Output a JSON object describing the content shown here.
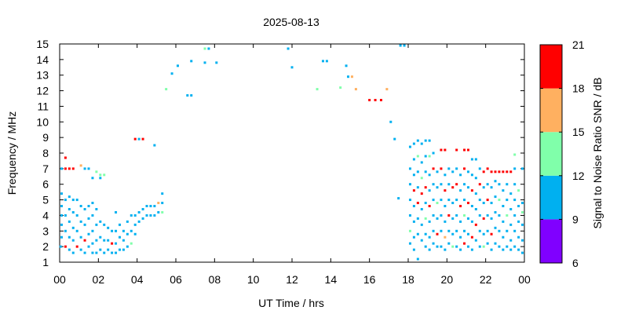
{
  "chart_data": {
    "type": "scatter",
    "title": "2025-08-13",
    "xlabel": "UT Time / hrs",
    "ylabel": "Frequency / MHz",
    "xlim": [
      0,
      24
    ],
    "ylim": [
      1,
      15
    ],
    "x_ticks": [
      "00",
      "02",
      "04",
      "06",
      "08",
      "10",
      "12",
      "14",
      "16",
      "18",
      "20",
      "22",
      "00"
    ],
    "y_ticks": [
      "1",
      "2",
      "3",
      "4",
      "5",
      "6",
      "7",
      "8",
      "9",
      "10",
      "11",
      "12",
      "13",
      "14",
      "15"
    ],
    "grid": false,
    "colorbar": {
      "label": "Signal to Noise Ratio SNR / dB",
      "ticks": [
        "6",
        "9",
        "12",
        "15",
        "18",
        "21"
      ],
      "bands": [
        {
          "min": 6,
          "max": 9,
          "color": "#8000ff"
        },
        {
          "min": 9,
          "max": 12,
          "color": "#00b0f0"
        },
        {
          "min": 12,
          "max": 15,
          "color": "#80ffaa"
        },
        {
          "min": 15,
          "max": 18,
          "color": "#ffb060"
        },
        {
          "min": 18,
          "max": 21,
          "color": "#ff0000"
        }
      ]
    },
    "points": [
      [
        0.05,
        2.0,
        10
      ],
      [
        0.1,
        2.6,
        10
      ],
      [
        0.1,
        3.4,
        10
      ],
      [
        0.1,
        4.0,
        10
      ],
      [
        0.1,
        4.6,
        10
      ],
      [
        0.1,
        5.4,
        10
      ],
      [
        0.1,
        7.0,
        10
      ],
      [
        0.3,
        7.7,
        19
      ],
      [
        0.3,
        7.0,
        19
      ],
      [
        0.3,
        5.0,
        10
      ],
      [
        0.3,
        4.0,
        10
      ],
      [
        0.3,
        3.0,
        10
      ],
      [
        0.3,
        2.0,
        19
      ],
      [
        0.5,
        7.0,
        19
      ],
      [
        0.5,
        5.2,
        10
      ],
      [
        0.5,
        4.4,
        10
      ],
      [
        0.5,
        3.6,
        10
      ],
      [
        0.5,
        2.6,
        10
      ],
      [
        0.5,
        1.8,
        10
      ],
      [
        0.7,
        7.0,
        19
      ],
      [
        0.7,
        5.0,
        10
      ],
      [
        0.7,
        4.2,
        10
      ],
      [
        0.7,
        3.2,
        10
      ],
      [
        0.7,
        2.4,
        10
      ],
      [
        0.7,
        1.6,
        10
      ],
      [
        0.9,
        5.0,
        10
      ],
      [
        0.9,
        4.0,
        10
      ],
      [
        0.9,
        3.0,
        10
      ],
      [
        0.9,
        2.0,
        19
      ],
      [
        1.1,
        7.2,
        16
      ],
      [
        1.1,
        4.6,
        10
      ],
      [
        1.1,
        3.6,
        10
      ],
      [
        1.1,
        2.6,
        10
      ],
      [
        1.1,
        1.8,
        10
      ],
      [
        1.3,
        7.0,
        10
      ],
      [
        1.3,
        4.4,
        10
      ],
      [
        1.3,
        3.4,
        10
      ],
      [
        1.3,
        2.4,
        19
      ],
      [
        1.3,
        1.6,
        10
      ],
      [
        1.5,
        7.0,
        10
      ],
      [
        1.5,
        4.6,
        10
      ],
      [
        1.5,
        3.8,
        10
      ],
      [
        1.5,
        2.8,
        10
      ],
      [
        1.5,
        2.0,
        10
      ],
      [
        1.7,
        6.4,
        10
      ],
      [
        1.7,
        4.8,
        10
      ],
      [
        1.7,
        4.0,
        10
      ],
      [
        1.7,
        3.0,
        10
      ],
      [
        1.7,
        2.2,
        10
      ],
      [
        1.7,
        1.6,
        10
      ],
      [
        1.9,
        6.8,
        13
      ],
      [
        1.9,
        4.4,
        10
      ],
      [
        1.9,
        3.4,
        10
      ],
      [
        1.9,
        2.4,
        10
      ],
      [
        1.9,
        1.6,
        10
      ],
      [
        2.1,
        6.6,
        13
      ],
      [
        2.1,
        6.4,
        10
      ],
      [
        2.1,
        3.6,
        10
      ],
      [
        2.1,
        2.6,
        10
      ],
      [
        2.1,
        1.8,
        10
      ],
      [
        2.3,
        6.6,
        13
      ],
      [
        2.3,
        3.4,
        10
      ],
      [
        2.3,
        2.4,
        10
      ],
      [
        2.3,
        1.6,
        10
      ],
      [
        2.5,
        3.2,
        10
      ],
      [
        2.5,
        2.4,
        10
      ],
      [
        2.5,
        1.8,
        10
      ],
      [
        2.7,
        3.0,
        10
      ],
      [
        2.7,
        2.2,
        19
      ],
      [
        2.7,
        1.6,
        10
      ],
      [
        2.9,
        4.2,
        10
      ],
      [
        2.9,
        3.0,
        10
      ],
      [
        2.9,
        2.2,
        10
      ],
      [
        2.9,
        1.6,
        10
      ],
      [
        3.1,
        3.4,
        10
      ],
      [
        3.1,
        2.6,
        10
      ],
      [
        3.1,
        1.8,
        10
      ],
      [
        3.3,
        3.0,
        10
      ],
      [
        3.3,
        2.4,
        10
      ],
      [
        3.3,
        1.8,
        10
      ],
      [
        3.5,
        3.6,
        10
      ],
      [
        3.5,
        2.8,
        10
      ],
      [
        3.5,
        2.0,
        10
      ],
      [
        3.7,
        4.0,
        10
      ],
      [
        3.7,
        3.0,
        10
      ],
      [
        3.7,
        2.2,
        13
      ],
      [
        3.9,
        8.9,
        19
      ],
      [
        3.9,
        4.0,
        10
      ],
      [
        3.9,
        3.4,
        10
      ],
      [
        3.9,
        2.8,
        10
      ],
      [
        4.1,
        8.9,
        10
      ],
      [
        4.1,
        4.2,
        10
      ],
      [
        4.1,
        3.6,
        10
      ],
      [
        4.3,
        8.9,
        19
      ],
      [
        4.3,
        4.4,
        10
      ],
      [
        4.3,
        3.8,
        10
      ],
      [
        4.5,
        4.6,
        10
      ],
      [
        4.5,
        4.0,
        10
      ],
      [
        4.7,
        4.6,
        10
      ],
      [
        4.7,
        4.0,
        10
      ],
      [
        4.9,
        8.5,
        10
      ],
      [
        4.9,
        4.6,
        10
      ],
      [
        4.9,
        4.0,
        10
      ],
      [
        5.1,
        4.8,
        16
      ],
      [
        5.1,
        4.2,
        10
      ],
      [
        5.3,
        5.4,
        10
      ],
      [
        5.3,
        4.8,
        10
      ],
      [
        5.3,
        4.2,
        13
      ],
      [
        5.5,
        12.1,
        13
      ],
      [
        5.8,
        13.1,
        10
      ],
      [
        6.1,
        13.6,
        10
      ],
      [
        6.6,
        11.7,
        10
      ],
      [
        6.8,
        11.7,
        10
      ],
      [
        6.8,
        13.9,
        10
      ],
      [
        7.5,
        14.7,
        13
      ],
      [
        7.5,
        13.8,
        10
      ],
      [
        7.7,
        14.7,
        10
      ],
      [
        8.1,
        13.8,
        10
      ],
      [
        11.8,
        14.7,
        10
      ],
      [
        12.0,
        13.5,
        10
      ],
      [
        13.3,
        12.1,
        13
      ],
      [
        13.6,
        13.9,
        10
      ],
      [
        13.8,
        13.9,
        10
      ],
      [
        14.5,
        12.2,
        13
      ],
      [
        14.8,
        13.6,
        10
      ],
      [
        14.9,
        12.9,
        10
      ],
      [
        15.1,
        12.9,
        16
      ],
      [
        15.3,
        12.1,
        16
      ],
      [
        16.0,
        11.4,
        19
      ],
      [
        16.3,
        11.4,
        19
      ],
      [
        16.6,
        11.4,
        19
      ],
      [
        16.9,
        12.1,
        16
      ],
      [
        17.1,
        10.0,
        10
      ],
      [
        17.3,
        8.9,
        10
      ],
      [
        17.5,
        5.1,
        10
      ],
      [
        17.6,
        14.9,
        10
      ],
      [
        17.8,
        14.9,
        10
      ],
      [
        18.1,
        8.4,
        10
      ],
      [
        18.1,
        7.0,
        10
      ],
      [
        18.1,
        6.0,
        10
      ],
      [
        18.1,
        5.0,
        10
      ],
      [
        18.1,
        4.0,
        10
      ],
      [
        18.1,
        3.0,
        13
      ],
      [
        18.1,
        2.2,
        10
      ],
      [
        18.3,
        8.6,
        10
      ],
      [
        18.3,
        7.6,
        10
      ],
      [
        18.3,
        6.6,
        10
      ],
      [
        18.3,
        5.6,
        19
      ],
      [
        18.3,
        4.6,
        10
      ],
      [
        18.3,
        3.6,
        10
      ],
      [
        18.3,
        2.6,
        10
      ],
      [
        18.3,
        1.8,
        10
      ],
      [
        18.5,
        8.8,
        10
      ],
      [
        18.5,
        7.8,
        13
      ],
      [
        18.5,
        6.8,
        10
      ],
      [
        18.5,
        5.8,
        10
      ],
      [
        18.5,
        4.8,
        19
      ],
      [
        18.5,
        3.8,
        10
      ],
      [
        18.5,
        2.8,
        10
      ],
      [
        18.5,
        1.2,
        10
      ],
      [
        18.7,
        8.6,
        10
      ],
      [
        18.7,
        7.4,
        10
      ],
      [
        18.7,
        6.4,
        13
      ],
      [
        18.7,
        5.4,
        19
      ],
      [
        18.7,
        4.4,
        10
      ],
      [
        18.7,
        3.4,
        10
      ],
      [
        18.7,
        2.4,
        10
      ],
      [
        18.9,
        8.8,
        10
      ],
      [
        18.9,
        7.8,
        10
      ],
      [
        18.9,
        6.8,
        10
      ],
      [
        18.9,
        5.8,
        19
      ],
      [
        18.9,
        4.8,
        10
      ],
      [
        18.9,
        3.8,
        13
      ],
      [
        18.9,
        2.8,
        10
      ],
      [
        18.9,
        2.0,
        10
      ],
      [
        19.1,
        8.8,
        10
      ],
      [
        19.1,
        7.8,
        13
      ],
      [
        19.1,
        6.6,
        10
      ],
      [
        19.1,
        5.6,
        10
      ],
      [
        19.1,
        4.6,
        19
      ],
      [
        19.1,
        3.6,
        10
      ],
      [
        19.1,
        2.6,
        10
      ],
      [
        19.1,
        1.8,
        10
      ],
      [
        19.3,
        8.0,
        10
      ],
      [
        19.3,
        7.0,
        19
      ],
      [
        19.3,
        6.0,
        10
      ],
      [
        19.3,
        5.0,
        10
      ],
      [
        19.3,
        4.0,
        10
      ],
      [
        19.3,
        3.0,
        10
      ],
      [
        19.3,
        2.2,
        10
      ],
      [
        19.5,
        6.8,
        10
      ],
      [
        19.5,
        5.8,
        10
      ],
      [
        19.5,
        4.8,
        13
      ],
      [
        19.5,
        3.8,
        10
      ],
      [
        19.5,
        2.8,
        19
      ],
      [
        19.5,
        2.0,
        10
      ],
      [
        19.7,
        8.2,
        19
      ],
      [
        19.7,
        7.0,
        19
      ],
      [
        19.7,
        6.0,
        10
      ],
      [
        19.7,
        5.0,
        10
      ],
      [
        19.7,
        4.0,
        10
      ],
      [
        19.7,
        3.0,
        10
      ],
      [
        19.7,
        2.0,
        10
      ],
      [
        19.9,
        8.2,
        19
      ],
      [
        19.9,
        6.6,
        10
      ],
      [
        19.9,
        5.6,
        19
      ],
      [
        19.9,
        4.6,
        10
      ],
      [
        19.9,
        3.6,
        10
      ],
      [
        19.9,
        2.6,
        16
      ],
      [
        19.9,
        1.8,
        10
      ],
      [
        20.1,
        7.0,
        10
      ],
      [
        20.1,
        6.0,
        10
      ],
      [
        20.1,
        5.0,
        10
      ],
      [
        20.1,
        4.0,
        19
      ],
      [
        20.1,
        3.0,
        10
      ],
      [
        20.1,
        2.2,
        10
      ],
      [
        20.3,
        6.8,
        10
      ],
      [
        20.3,
        5.8,
        19
      ],
      [
        20.3,
        4.8,
        10
      ],
      [
        20.3,
        3.8,
        10
      ],
      [
        20.3,
        2.8,
        10
      ],
      [
        20.3,
        2.0,
        13
      ],
      [
        20.5,
        8.2,
        19
      ],
      [
        20.5,
        7.0,
        10
      ],
      [
        20.5,
        6.0,
        19
      ],
      [
        20.5,
        5.0,
        10
      ],
      [
        20.5,
        4.0,
        10
      ],
      [
        20.5,
        3.0,
        10
      ],
      [
        20.5,
        2.0,
        10
      ],
      [
        20.7,
        6.6,
        10
      ],
      [
        20.7,
        5.6,
        10
      ],
      [
        20.7,
        4.6,
        19
      ],
      [
        20.7,
        3.6,
        10
      ],
      [
        20.7,
        2.6,
        10
      ],
      [
        20.7,
        1.8,
        10
      ],
      [
        20.9,
        8.2,
        19
      ],
      [
        20.9,
        7.0,
        19
      ],
      [
        20.9,
        6.0,
        10
      ],
      [
        20.9,
        5.0,
        10
      ],
      [
        20.9,
        4.0,
        13
      ],
      [
        20.9,
        3.0,
        10
      ],
      [
        20.9,
        2.2,
        19
      ],
      [
        21.1,
        8.2,
        19
      ],
      [
        21.1,
        6.8,
        10
      ],
      [
        21.1,
        5.8,
        10
      ],
      [
        21.1,
        4.8,
        19
      ],
      [
        21.1,
        3.8,
        10
      ],
      [
        21.1,
        2.8,
        10
      ],
      [
        21.1,
        2.0,
        10
      ],
      [
        21.3,
        7.6,
        10
      ],
      [
        21.3,
        6.6,
        10
      ],
      [
        21.3,
        5.6,
        19
      ],
      [
        21.3,
        4.6,
        10
      ],
      [
        21.3,
        3.6,
        10
      ],
      [
        21.3,
        2.6,
        19
      ],
      [
        21.3,
        1.8,
        10
      ],
      [
        21.5,
        7.6,
        10
      ],
      [
        21.5,
        6.4,
        10
      ],
      [
        21.5,
        5.4,
        10
      ],
      [
        21.5,
        4.4,
        10
      ],
      [
        21.5,
        3.4,
        19
      ],
      [
        21.5,
        2.4,
        10
      ],
      [
        21.7,
        7.0,
        10
      ],
      [
        21.7,
        6.0,
        19
      ],
      [
        21.7,
        5.0,
        10
      ],
      [
        21.7,
        4.0,
        10
      ],
      [
        21.7,
        3.0,
        10
      ],
      [
        21.7,
        2.0,
        10
      ],
      [
        21.9,
        6.8,
        19
      ],
      [
        21.9,
        5.8,
        10
      ],
      [
        21.9,
        4.8,
        10
      ],
      [
        21.9,
        3.8,
        19
      ],
      [
        21.9,
        2.8,
        10
      ],
      [
        21.9,
        2.0,
        13
      ],
      [
        22.1,
        7.0,
        19
      ],
      [
        22.1,
        6.0,
        10
      ],
      [
        22.1,
        5.0,
        19
      ],
      [
        22.1,
        4.0,
        10
      ],
      [
        22.1,
        3.0,
        10
      ],
      [
        22.1,
        2.2,
        10
      ],
      [
        22.3,
        6.8,
        19
      ],
      [
        22.3,
        5.8,
        10
      ],
      [
        22.3,
        4.8,
        10
      ],
      [
        22.3,
        3.8,
        10
      ],
      [
        22.3,
        2.8,
        19
      ],
      [
        22.3,
        1.8,
        10
      ],
      [
        22.5,
        6.8,
        19
      ],
      [
        22.5,
        6.2,
        10
      ],
      [
        22.5,
        5.2,
        10
      ],
      [
        22.5,
        4.2,
        10
      ],
      [
        22.5,
        3.2,
        10
      ],
      [
        22.5,
        2.2,
        10
      ],
      [
        22.7,
        6.8,
        19
      ],
      [
        22.7,
        6.0,
        10
      ],
      [
        22.7,
        5.0,
        13
      ],
      [
        22.7,
        4.0,
        10
      ],
      [
        22.7,
        3.0,
        10
      ],
      [
        22.7,
        2.0,
        10
      ],
      [
        22.9,
        6.8,
        19
      ],
      [
        22.9,
        5.6,
        10
      ],
      [
        22.9,
        4.6,
        10
      ],
      [
        22.9,
        3.6,
        10
      ],
      [
        22.9,
        2.6,
        10
      ],
      [
        22.9,
        1.8,
        10
      ],
      [
        23.1,
        6.8,
        19
      ],
      [
        23.1,
        6.0,
        10
      ],
      [
        23.1,
        5.0,
        10
      ],
      [
        23.1,
        4.0,
        13
      ],
      [
        23.1,
        3.0,
        10
      ],
      [
        23.1,
        2.0,
        10
      ],
      [
        23.3,
        6.8,
        19
      ],
      [
        23.3,
        5.4,
        10
      ],
      [
        23.3,
        4.4,
        10
      ],
      [
        23.3,
        3.4,
        10
      ],
      [
        23.3,
        2.4,
        10
      ],
      [
        23.3,
        1.8,
        10
      ],
      [
        23.5,
        7.9,
        13
      ],
      [
        23.5,
        7.0,
        10
      ],
      [
        23.5,
        6.0,
        10
      ],
      [
        23.5,
        5.0,
        10
      ],
      [
        23.5,
        4.0,
        10
      ],
      [
        23.5,
        3.0,
        10
      ],
      [
        23.5,
        2.0,
        10
      ],
      [
        23.7,
        5.6,
        13
      ],
      [
        23.7,
        4.6,
        10
      ],
      [
        23.7,
        3.6,
        10
      ],
      [
        23.7,
        2.6,
        10
      ],
      [
        23.7,
        1.8,
        10
      ],
      [
        23.9,
        7.0,
        10
      ],
      [
        23.9,
        4.8,
        10
      ],
      [
        23.9,
        4.2,
        13
      ],
      [
        23.9,
        3.4,
        10
      ],
      [
        23.9,
        2.4,
        10
      ],
      [
        23.9,
        1.6,
        10
      ]
    ]
  }
}
